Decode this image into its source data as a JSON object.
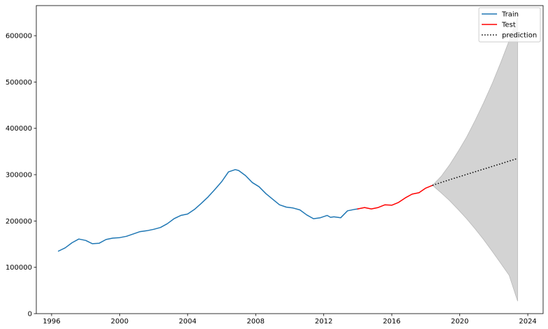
{
  "chart_data": {
    "type": "line",
    "title": "",
    "xlabel": "",
    "ylabel": "",
    "xlim": [
      1995.1,
      2024.9
    ],
    "ylim": [
      0,
      665000
    ],
    "x_ticks": [
      1996,
      2000,
      2004,
      2008,
      2012,
      2016,
      2020,
      2024
    ],
    "y_ticks": [
      0,
      100000,
      200000,
      300000,
      400000,
      500000,
      600000
    ],
    "x_tick_labels": [
      "1996",
      "2000",
      "2004",
      "2008",
      "2012",
      "2016",
      "2020",
      "2024"
    ],
    "y_tick_labels": [
      "0",
      "100000",
      "200000",
      "300000",
      "400000",
      "500000",
      "600000"
    ],
    "grid": false,
    "legend": {
      "placement": "top-right",
      "entries": [
        "Train",
        "Test",
        "prediction"
      ]
    },
    "colors": {
      "train": "#1f77b4",
      "test": "#ff0000",
      "prediction": "#000000",
      "confidence_band": "#d3d3d3"
    },
    "series": [
      {
        "name": "Train",
        "style": "solid",
        "x": [
          1996.4,
          1996.8,
          1997.2,
          1997.6,
          1998.0,
          1998.4,
          1998.8,
          1999.2,
          1999.6,
          2000.0,
          2000.4,
          2000.8,
          2001.2,
          2001.6,
          2002.0,
          2002.4,
          2002.8,
          2003.2,
          2003.6,
          2004.0,
          2004.4,
          2004.8,
          2005.2,
          2005.6,
          2006.0,
          2006.4,
          2006.8,
          2007.0,
          2007.4,
          2007.8,
          2008.2,
          2008.6,
          2009.0,
          2009.4,
          2009.8,
          2010.2,
          2010.6,
          2011.0,
          2011.4,
          2011.8,
          2012.2,
          2012.4,
          2012.6,
          2013.0,
          2013.4,
          2013.8,
          2014.0
        ],
        "y": [
          135000,
          142000,
          153000,
          161000,
          158000,
          151000,
          152000,
          160000,
          163000,
          164000,
          167000,
          172000,
          177000,
          179000,
          182000,
          186000,
          194000,
          205000,
          212000,
          215000,
          225000,
          238000,
          252000,
          268000,
          285000,
          306000,
          311000,
          309000,
          298000,
          283000,
          274000,
          259000,
          247000,
          235000,
          230000,
          228000,
          224000,
          213000,
          205000,
          207000,
          212000,
          208000,
          209000,
          207000,
          222000,
          225000,
          226000
        ]
      },
      {
        "name": "Test",
        "style": "solid",
        "x": [
          2014.0,
          2014.4,
          2014.8,
          2015.2,
          2015.6,
          2016.0,
          2016.4,
          2016.8,
          2017.2,
          2017.6,
          2018.0,
          2018.4
        ],
        "y": [
          226000,
          229000,
          226000,
          229000,
          235000,
          234000,
          240000,
          250000,
          258000,
          261000,
          271000,
          277000
        ]
      },
      {
        "name": "prediction",
        "style": "dotted",
        "x": [
          2018.4,
          2019.4,
          2020.4,
          2021.4,
          2022.4,
          2023.4
        ],
        "y": [
          277000,
          289000,
          300500,
          312000,
          323500,
          335000
        ]
      }
    ],
    "confidence_band": {
      "x": [
        2018.4,
        2018.9,
        2019.4,
        2019.9,
        2020.4,
        2020.9,
        2021.4,
        2021.9,
        2022.4,
        2022.9,
        2023.4
      ],
      "lower": [
        277000,
        261000,
        244000,
        225000,
        205000,
        183000,
        160000,
        135000,
        109000,
        83000,
        27000
      ],
      "upper": [
        277000,
        296000,
        321000,
        350000,
        381000,
        417000,
        455000,
        496000,
        541000,
        589000,
        640000
      ]
    }
  }
}
